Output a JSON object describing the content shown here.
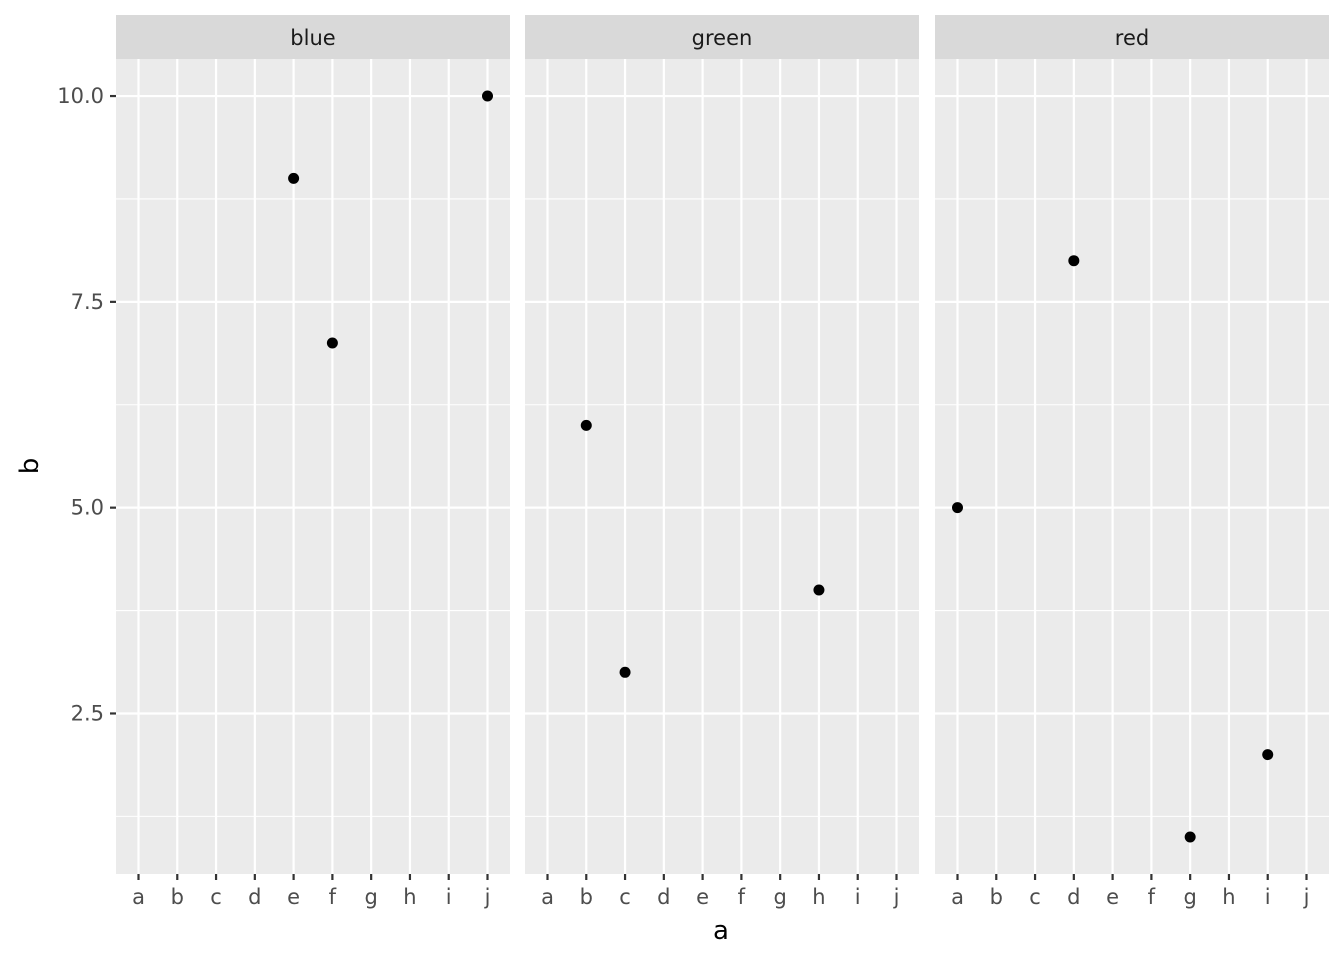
{
  "chart_data": {
    "type": "scatter",
    "facet_by": "color",
    "xlabel": "a",
    "ylabel": "b",
    "x_categories": [
      "a",
      "b",
      "c",
      "d",
      "e",
      "f",
      "g",
      "h",
      "i",
      "j"
    ],
    "ylim": [
      0.55,
      10.45
    ],
    "y_ticks": [
      2.5,
      5.0,
      7.5,
      10.0
    ],
    "y_tick_labels": [
      "2.5",
      "5.0",
      "7.5",
      "10.0"
    ],
    "y_minor_ticks": [
      1.25,
      3.75,
      6.25,
      8.75
    ],
    "grid": true,
    "panels": [
      {
        "facet": "blue",
        "points": [
          {
            "x": "e",
            "y": 9
          },
          {
            "x": "f",
            "y": 7
          },
          {
            "x": "j",
            "y": 10
          }
        ]
      },
      {
        "facet": "green",
        "points": [
          {
            "x": "b",
            "y": 6
          },
          {
            "x": "c",
            "y": 3
          },
          {
            "x": "h",
            "y": 4
          }
        ]
      },
      {
        "facet": "red",
        "points": [
          {
            "x": "a",
            "y": 5
          },
          {
            "x": "d",
            "y": 8
          },
          {
            "x": "g",
            "y": 1
          },
          {
            "x": "i",
            "y": 2
          }
        ]
      }
    ]
  }
}
